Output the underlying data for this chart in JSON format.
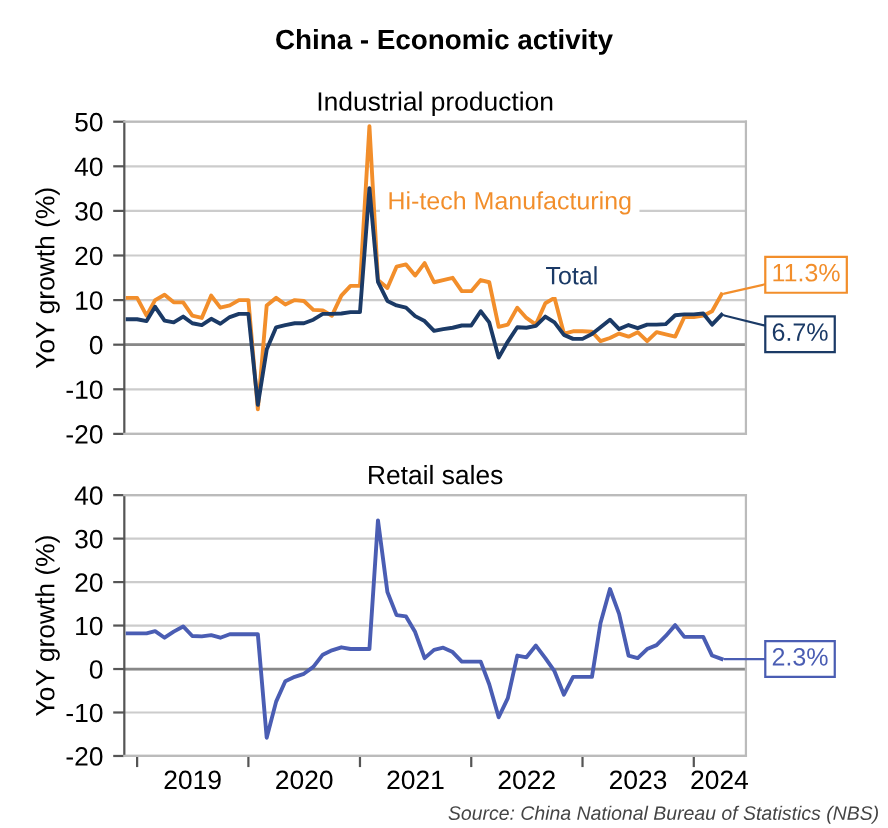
{
  "chart_data": [
    {
      "type": "line",
      "title": "China - Economic activity",
      "subtitle": "Industrial production",
      "ylabel": "YoY growth (%)",
      "x": [
        "2018-12",
        "2019-01",
        "2019-02",
        "2019-03",
        "2019-04",
        "2019-05",
        "2019-06",
        "2019-07",
        "2019-08",
        "2019-09",
        "2019-10",
        "2019-11",
        "2019-12",
        "2020-01",
        "2020-02",
        "2020-03",
        "2020-04",
        "2020-05",
        "2020-06",
        "2020-07",
        "2020-08",
        "2020-09",
        "2020-10",
        "2020-11",
        "2020-12",
        "2021-01",
        "2021-02",
        "2021-03",
        "2021-04",
        "2021-05",
        "2021-06",
        "2021-07",
        "2021-08",
        "2021-09",
        "2021-10",
        "2021-11",
        "2021-12",
        "2022-01",
        "2022-02",
        "2022-03",
        "2022-04",
        "2022-05",
        "2022-06",
        "2022-07",
        "2022-08",
        "2022-09",
        "2022-10",
        "2022-11",
        "2022-12",
        "2023-01",
        "2023-02",
        "2023-03",
        "2023-04",
        "2023-05",
        "2023-06",
        "2023-07",
        "2023-08",
        "2023-09",
        "2023-10",
        "2023-11",
        "2023-12",
        "2024-01",
        "2024-02",
        "2024-03",
        "2024-04"
      ],
      "series": [
        {
          "name": "Hi-tech Manufacturing",
          "color": "#f28e2b",
          "values": [
            10.5,
            10.5,
            6.5,
            10,
            11.2,
            9.5,
            9.5,
            6.5,
            6,
            11,
            8.3,
            8.8,
            10,
            10,
            -14.5,
            8.8,
            10.5,
            9,
            10,
            9.8,
            7.8,
            7.7,
            6.5,
            11,
            13.2,
            13.2,
            49,
            14.5,
            12.7,
            17.5,
            18,
            15.5,
            18.3,
            14,
            14.5,
            15,
            12,
            12,
            14.5,
            14,
            4,
            4.5,
            8.3,
            6,
            4.5,
            9.3,
            10.5,
            2.5,
            3,
            3,
            2.9,
            0.8,
            1.5,
            2.5,
            1.8,
            2.8,
            0.8,
            2.8,
            2.3,
            1.8,
            6.2,
            6.2,
            6.5,
            7.5,
            11.3
          ]
        },
        {
          "name": "Total",
          "color": "#1b3a66",
          "values": [
            5.7,
            5.7,
            5.3,
            8.5,
            5.4,
            5.0,
            6.3,
            4.8,
            4.4,
            5.8,
            4.7,
            6.2,
            6.9,
            6.9,
            -13.5,
            -1.1,
            3.9,
            4.4,
            4.8,
            4.8,
            5.6,
            6.9,
            6.9,
            7.0,
            7.3,
            7.3,
            35.1,
            14.1,
            9.8,
            8.8,
            8.3,
            6.4,
            5.3,
            3.1,
            3.5,
            3.8,
            4.3,
            4.3,
            7.5,
            5.0,
            -2.9,
            0.7,
            3.9,
            3.8,
            4.2,
            6.3,
            5.0,
            2.2,
            1.3,
            1.3,
            2.4,
            3.9,
            5.6,
            3.5,
            4.4,
            3.7,
            4.5,
            4.5,
            4.6,
            6.6,
            6.8,
            6.8,
            7.0,
            4.5,
            6.7
          ]
        }
      ],
      "annotations": [
        {
          "text": "11.3%",
          "x": "2024-04",
          "y": 11.3
        },
        {
          "text": "6.7%",
          "x": "2024-04",
          "y": 6.7
        }
      ],
      "xlim": [
        "2018-11-20",
        "2024-06-20"
      ],
      "ylim": [
        -20,
        50
      ],
      "yticks": [
        -20,
        -10,
        0,
        10,
        20,
        30,
        40,
        50
      ],
      "ref_lines": [
        {
          "axis": "y",
          "value": 0,
          "color": "#888888"
        }
      ],
      "grid": "y",
      "legend": false,
      "tick_labels": "y",
      "marker": "none",
      "line_style": "solid"
    },
    {
      "type": "line",
      "title": "Retail sales",
      "ylabel": "YoY growth (%)",
      "x": [
        "2018-12",
        "2019-01",
        "2019-02",
        "2019-03",
        "2019-04",
        "2019-05",
        "2019-06",
        "2019-07",
        "2019-08",
        "2019-09",
        "2019-10",
        "2019-11",
        "2019-12",
        "2020-01",
        "2020-02",
        "2020-03",
        "2020-04",
        "2020-05",
        "2020-06",
        "2020-07",
        "2020-08",
        "2020-09",
        "2020-10",
        "2020-11",
        "2020-12",
        "2021-01",
        "2021-02",
        "2021-03",
        "2021-04",
        "2021-05",
        "2021-06",
        "2021-07",
        "2021-08",
        "2021-09",
        "2021-10",
        "2021-11",
        "2021-12",
        "2022-01",
        "2022-02",
        "2022-03",
        "2022-04",
        "2022-05",
        "2022-06",
        "2022-07",
        "2022-08",
        "2022-09",
        "2022-10",
        "2022-11",
        "2022-12",
        "2023-01",
        "2023-02",
        "2023-03",
        "2023-04",
        "2023-05",
        "2023-06",
        "2023-07",
        "2023-08",
        "2023-09",
        "2023-10",
        "2023-11",
        "2023-12",
        "2024-01",
        "2024-02",
        "2024-03",
        "2024-04"
      ],
      "series": [
        {
          "color": "#4a5db3",
          "values": [
            8.2,
            8.2,
            8.2,
            8.7,
            7.2,
            8.6,
            9.8,
            7.6,
            7.5,
            7.8,
            7.2,
            8.0,
            8.0,
            8.0,
            8.0,
            -15.8,
            -7.5,
            -2.8,
            -1.8,
            -1.1,
            0.5,
            3.3,
            4.3,
            5.0,
            4.6,
            4.6,
            4.6,
            34.2,
            17.7,
            12.4,
            12.1,
            8.5,
            2.5,
            4.4,
            4.9,
            3.9,
            1.7,
            1.7,
            1.7,
            -3.5,
            -11.1,
            -6.7,
            3.1,
            2.7,
            5.4,
            2.5,
            -0.5,
            -5.9,
            -1.8,
            -1.8,
            -1.8,
            10.6,
            18.4,
            12.7,
            3.1,
            2.5,
            4.6,
            5.5,
            7.6,
            10.1,
            7.4,
            7.4,
            7.4,
            3.1,
            2.3
          ]
        }
      ],
      "annotations": [
        {
          "text": "2.3%",
          "x": "2024-04",
          "y": 2.3
        },
        "Source: China National Bureau of Statistics (NBS)"
      ],
      "xlim": [
        "2018-11-20",
        "2024-06-20"
      ],
      "ylim": [
        -20,
        40
      ],
      "yticks": [
        -20,
        -10,
        0,
        10,
        20,
        30,
        40
      ],
      "xticks": [
        {
          "value": "2019-01-01",
          "label": null
        },
        {
          "value": "2020-01-01",
          "label": null
        },
        {
          "value": "2021-01-01",
          "label": null
        },
        {
          "value": "2022-01-01",
          "label": null
        },
        {
          "value": "2023-01-01",
          "label": null
        },
        {
          "value": "2024-01-01",
          "label": null
        },
        {
          "value": "2019-07-02",
          "label": "2019"
        },
        {
          "value": "2020-07-02",
          "label": "2020"
        },
        {
          "value": "2021-07-02",
          "label": "2021"
        },
        {
          "value": "2022-07-02",
          "label": "2022"
        },
        {
          "value": "2023-07-02",
          "label": "2023"
        },
        {
          "value": "2024-03-25",
          "label": "2024"
        }
      ],
      "ref_lines": [
        {
          "axis": "y",
          "value": 0,
          "color": "#888888"
        }
      ],
      "grid": "y",
      "legend": false,
      "marker": "none",
      "line_style": "solid"
    }
  ]
}
